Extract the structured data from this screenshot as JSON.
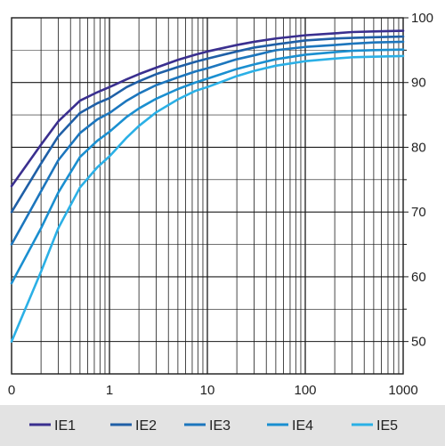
{
  "chart_data": {
    "type": "line",
    "title": "",
    "xlabel": "",
    "ylabel": "",
    "x_scale": "log",
    "x_tick_labels": [
      "0",
      "1",
      "10",
      "100",
      "1000"
    ],
    "y_tick_labels": [
      "50",
      "60",
      "70",
      "80",
      "90",
      "100"
    ],
    "ylim": [
      45,
      100
    ],
    "grid": true,
    "legend_position": "bottom",
    "x": [
      0.1,
      0.2,
      0.3,
      0.5,
      0.75,
      1,
      1.5,
      2,
      3,
      5,
      7.5,
      10,
      20,
      30,
      50,
      100,
      200,
      300,
      500,
      1000
    ],
    "series": [
      {
        "name": "IE1",
        "color": "#3a2f8f",
        "values": [
          74,
          80.4,
          84,
          87.2,
          88.5,
          89.3,
          90.5,
          91.3,
          92.3,
          93.5,
          94.3,
          94.8,
          95.8,
          96.3,
          96.8,
          97.3,
          97.6,
          97.8,
          97.9,
          98
        ]
      },
      {
        "name": "IE2",
        "color": "#1f5fa6",
        "values": [
          70,
          77.5,
          81.7,
          85.3,
          86.8,
          87.6,
          89.3,
          90.2,
          91.3,
          92.4,
          93.2,
          93.7,
          94.8,
          95.4,
          95.9,
          96.5,
          96.8,
          96.9,
          97,
          97.1
        ]
      },
      {
        "name": "IE3",
        "color": "#1c76bd",
        "values": [
          65,
          73.2,
          78,
          82.2,
          84.3,
          85.3,
          87.2,
          88.3,
          89.6,
          90.8,
          91.7,
          92.2,
          93.6,
          94.2,
          95,
          95.5,
          95.8,
          96,
          96.2,
          96.3
        ]
      },
      {
        "name": "IE4",
        "color": "#1a8fd0",
        "values": [
          59,
          67.5,
          73,
          78.5,
          81,
          82.4,
          84.7,
          86,
          87.5,
          89,
          90,
          90.6,
          92.1,
          92.8,
          93.6,
          94.3,
          94.7,
          94.9,
          95,
          95.1
        ]
      },
      {
        "name": "IE5",
        "color": "#2bb0e6",
        "values": [
          50,
          60.8,
          67.5,
          73.8,
          76.9,
          78.6,
          81.5,
          83.3,
          85.4,
          87.4,
          88.7,
          89.3,
          91,
          91.8,
          92.6,
          93.3,
          93.7,
          93.9,
          94,
          94.1
        ]
      }
    ]
  }
}
